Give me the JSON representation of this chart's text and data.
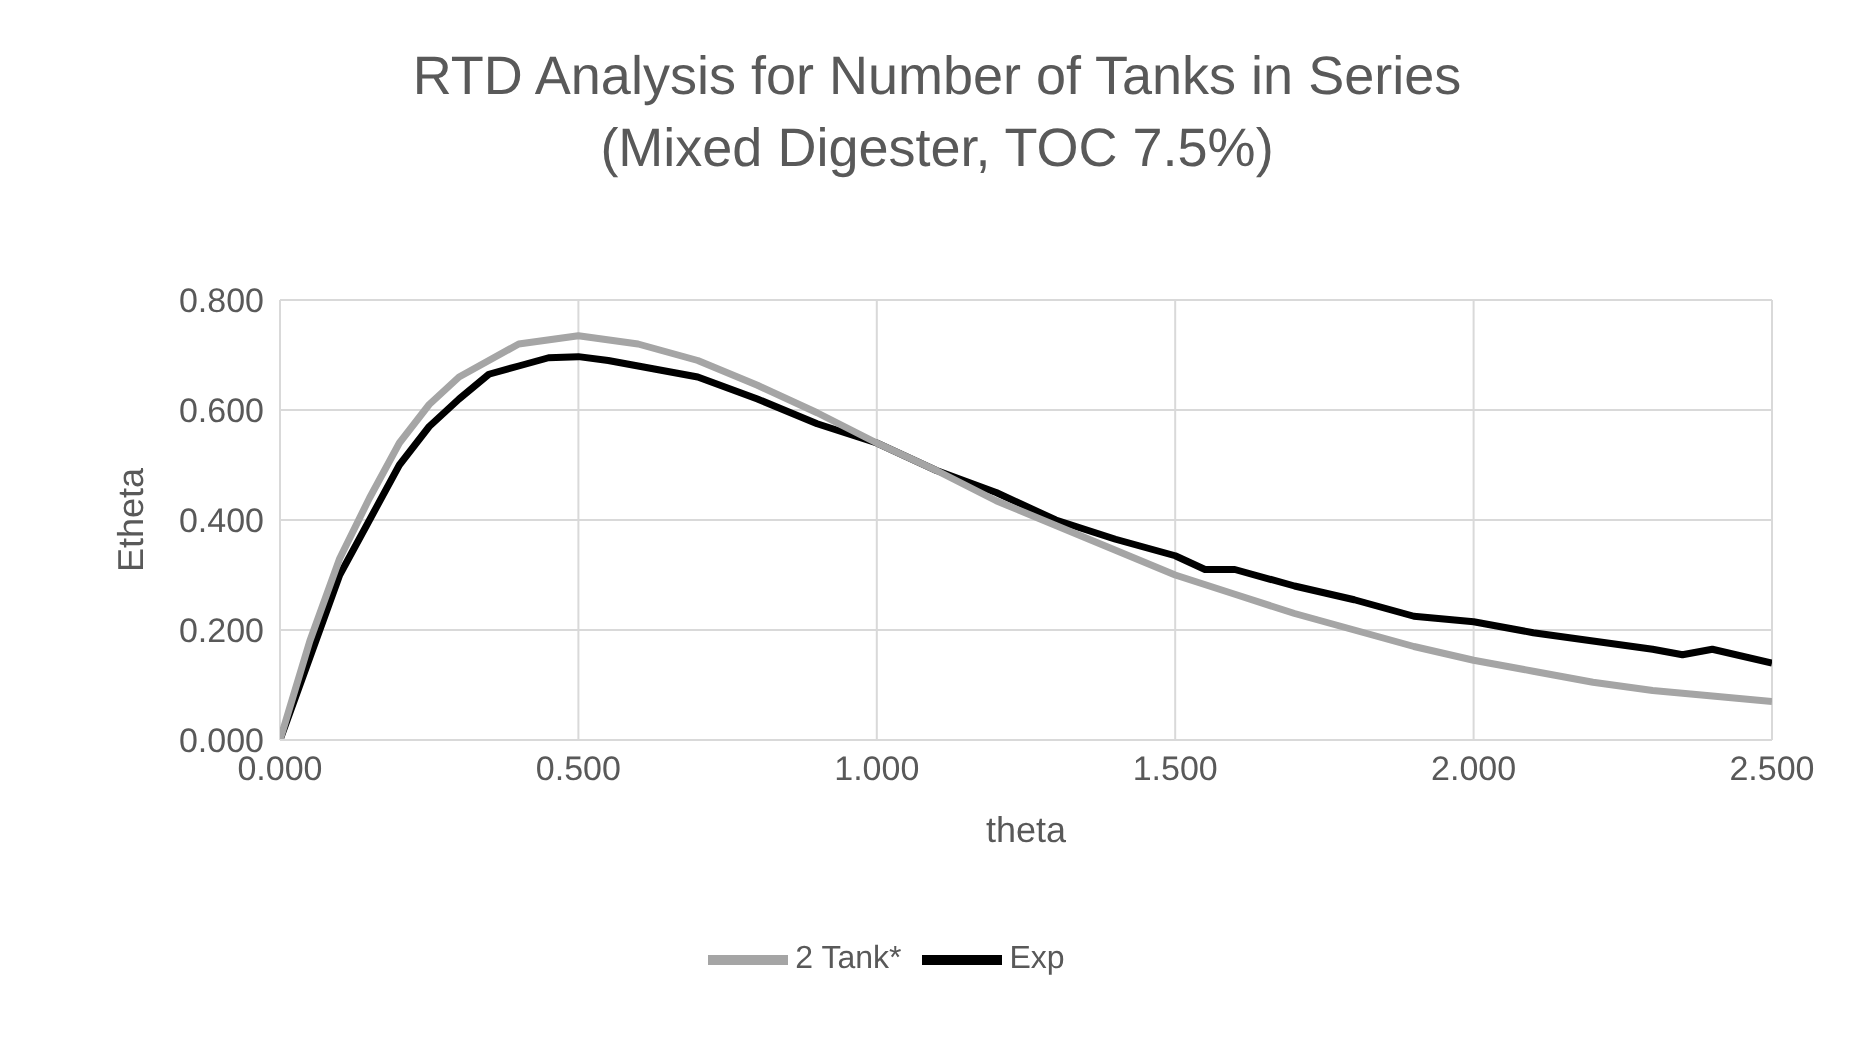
{
  "chart_data": {
    "type": "line",
    "title": "RTD Analysis for Number of Tanks in Series\n(Mixed Digester, TOC 7.5%)",
    "xlabel": "theta",
    "ylabel": "Etheta",
    "xlim": [
      0,
      2.5
    ],
    "xticks": [
      {
        "value": 0,
        "label": "0.000"
      },
      {
        "value": 0.5,
        "label": "0.500"
      },
      {
        "value": 1,
        "label": "1.000"
      },
      {
        "value": 1.5,
        "label": "1.500"
      },
      {
        "value": 2,
        "label": "2.000"
      },
      {
        "value": 2.5,
        "label": "2.500"
      }
    ],
    "ylim": [
      0,
      0.8
    ],
    "yticks": [
      {
        "value": 0,
        "label": "0.000"
      },
      {
        "value": 0.2,
        "label": "0.200"
      },
      {
        "value": 0.4,
        "label": "0.400"
      },
      {
        "value": 0.6,
        "label": "0.600"
      },
      {
        "value": 0.8,
        "label": "0.800"
      }
    ],
    "grid": true,
    "legend": "bottom",
    "marker": "none",
    "line_style": "solid",
    "series": [
      {
        "name": "Exp",
        "color": "#000000",
        "x": [
          0,
          0.05,
          0.1,
          0.15,
          0.2,
          0.25,
          0.3,
          0.35,
          0.4,
          0.45,
          0.5,
          0.55,
          0.6,
          0.7,
          0.8,
          0.9,
          1.0,
          1.1,
          1.2,
          1.3,
          1.4,
          1.5,
          1.55,
          1.6,
          1.7,
          1.8,
          1.9,
          2.0,
          2.1,
          2.2,
          2.3,
          2.35,
          2.4,
          2.5
        ],
        "values": [
          0,
          0.15,
          0.3,
          0.4,
          0.5,
          0.57,
          0.62,
          0.665,
          0.68,
          0.695,
          0.697,
          0.69,
          0.68,
          0.66,
          0.62,
          0.575,
          0.54,
          0.49,
          0.45,
          0.4,
          0.365,
          0.335,
          0.31,
          0.31,
          0.28,
          0.255,
          0.225,
          0.215,
          0.195,
          0.18,
          0.165,
          0.155,
          0.165,
          0.14
        ]
      },
      {
        "name": "2 Tank*",
        "color": "#a5a5a5",
        "x": [
          0,
          0.05,
          0.1,
          0.15,
          0.2,
          0.25,
          0.3,
          0.4,
          0.5,
          0.6,
          0.7,
          0.8,
          0.9,
          1.0,
          1.1,
          1.2,
          1.3,
          1.4,
          1.5,
          1.6,
          1.7,
          1.8,
          1.9,
          2.0,
          2.1,
          2.2,
          2.3,
          2.4,
          2.5
        ],
        "values": [
          0,
          0.18,
          0.33,
          0.44,
          0.54,
          0.61,
          0.66,
          0.72,
          0.735,
          0.72,
          0.69,
          0.645,
          0.595,
          0.54,
          0.49,
          0.435,
          0.39,
          0.345,
          0.3,
          0.265,
          0.23,
          0.2,
          0.17,
          0.145,
          0.125,
          0.105,
          0.09,
          0.08,
          0.07
        ]
      }
    ]
  }
}
